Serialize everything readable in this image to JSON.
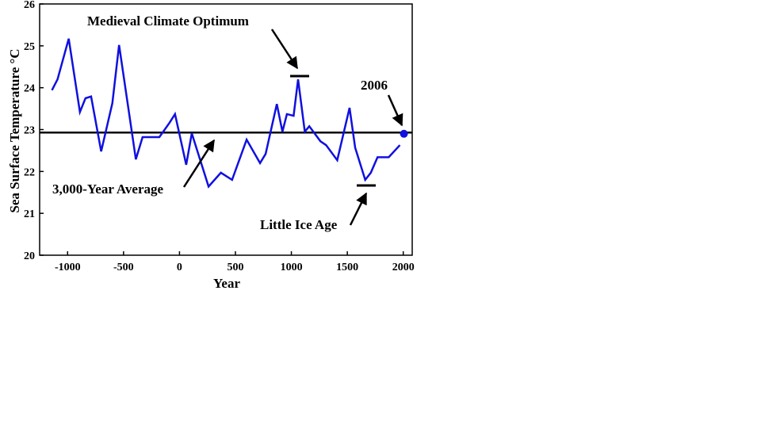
{
  "chart_data": {
    "type": "line",
    "title": "",
    "xlabel": "Year",
    "ylabel": "Sea Surface Temperature °C",
    "xlim": [
      -1250,
      2080
    ],
    "ylim": [
      20,
      26
    ],
    "xticks": [
      -1000,
      -500,
      0,
      500,
      1000,
      1500,
      2000
    ],
    "xtick_labels": [
      "-1000",
      "-500",
      "0",
      "500",
      "1000",
      "1500",
      "2000"
    ],
    "yticks": [
      20,
      21,
      22,
      23,
      24,
      25,
      26
    ],
    "ytick_labels": [
      "20",
      "21",
      "22",
      "23",
      "24",
      "25",
      "26"
    ],
    "grid": false,
    "series": [
      {
        "color": "#1010e0",
        "x": [
          -1140,
          -1090,
          -990,
          -890,
          -840,
          -790,
          -700,
          -600,
          -540,
          -390,
          -330,
          -180,
          -90,
          -40,
          60,
          110,
          260,
          370,
          470,
          600,
          720,
          770,
          870,
          920,
          960,
          1020,
          1060,
          1120,
          1160,
          1260,
          1310,
          1410,
          1520,
          1570,
          1660,
          1710,
          1770,
          1870,
          1970
        ],
        "y": [
          23.94,
          24.2,
          25.17,
          23.42,
          23.75,
          23.79,
          22.48,
          23.63,
          25.02,
          22.29,
          22.82,
          22.82,
          23.16,
          23.37,
          22.16,
          22.91,
          21.64,
          21.97,
          21.8,
          22.76,
          22.2,
          22.42,
          23.61,
          22.95,
          23.37,
          23.33,
          24.2,
          22.95,
          23.08,
          22.72,
          22.63,
          22.27,
          23.52,
          22.57,
          21.8,
          21.97,
          22.34,
          22.34,
          22.63
        ]
      }
    ],
    "average_line": {
      "value": 22.93,
      "color": "#000000"
    },
    "point_2006": {
      "x": 2006,
      "y": 22.9,
      "color": "#1010e0"
    },
    "annotations": {
      "medieval": "Medieval Climate Optimum",
      "average": "3,000-Year Average",
      "little_ice_age": "Little Ice Age",
      "year_2006": "2006"
    }
  }
}
